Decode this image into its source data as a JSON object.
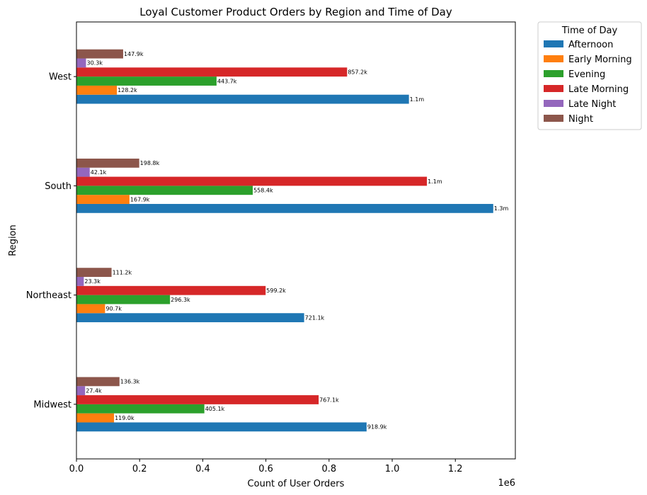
{
  "chart_data": {
    "type": "bar",
    "orientation": "horizontal",
    "title": "Loyal Customer Product Orders by Region and Time of Day",
    "xlabel": "Count of User Orders",
    "ylabel": "Region",
    "x_offset_label": "1e6",
    "xlim": [
      0,
      1.39
    ],
    "xticks": [
      0.0,
      0.2,
      0.4,
      0.6,
      0.8,
      1.0,
      1.2
    ],
    "xtick_labels": [
      "0.0",
      "0.2",
      "0.4",
      "0.6",
      "0.8",
      "1.0",
      "1.2"
    ],
    "x_unit_scale": 1000000,
    "categories": [
      "Midwest",
      "Northeast",
      "South",
      "West"
    ],
    "grid": false,
    "legend_title": "Time of Day",
    "legend_position": "outside-top-right",
    "series": [
      {
        "name": "Afternoon",
        "color": "#1f77b4",
        "values": [
          918900,
          721100,
          1320000,
          1053000
        ],
        "labels": [
          "918.9k",
          "721.1k",
          "1.3m",
          "1.1m"
        ]
      },
      {
        "name": "Early Morning",
        "color": "#ff7f0e",
        "values": [
          119000,
          90700,
          167900,
          128200
        ],
        "labels": [
          "119.0k",
          "90.7k",
          "167.9k",
          "128.2k"
        ]
      },
      {
        "name": "Evening",
        "color": "#2ca02c",
        "values": [
          405100,
          296300,
          558400,
          443700
        ],
        "labels": [
          "405.1k",
          "296.3k",
          "558.4k",
          "443.7k"
        ]
      },
      {
        "name": "Late Morning",
        "color": "#d62728",
        "values": [
          767100,
          599200,
          1110000,
          857200
        ],
        "labels": [
          "767.1k",
          "599.2k",
          "1.1m",
          "857.2k"
        ]
      },
      {
        "name": "Late Night",
        "color": "#9467bd",
        "values": [
          27400,
          23300,
          42100,
          30300
        ],
        "labels": [
          "27.4k",
          "23.3k",
          "42.1k",
          "30.3k"
        ]
      },
      {
        "name": "Night",
        "color": "#8c564b",
        "values": [
          136300,
          111200,
          198800,
          147900
        ],
        "labels": [
          "136.3k",
          "111.2k",
          "198.8k",
          "147.9k"
        ]
      }
    ]
  }
}
